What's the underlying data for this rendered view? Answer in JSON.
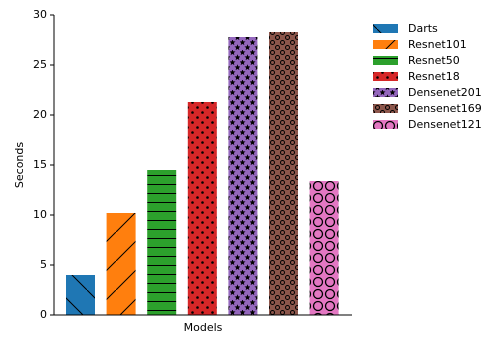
{
  "chart_data": {
    "type": "bar",
    "ylabel": "Seconds",
    "xlabel": "Models",
    "categories": [
      null
    ],
    "series": [
      {
        "name": "Darts",
        "color": "#1f77b4",
        "hatch": "\\",
        "values": [
          4.0
        ]
      },
      {
        "name": "Resnet101",
        "color": "#ff7f0e",
        "hatch": "/",
        "values": [
          10.2
        ]
      },
      {
        "name": "Resnet50",
        "color": "#2ca02c",
        "hatch": "-",
        "values": [
          14.5
        ]
      },
      {
        "name": "Resnet18",
        "color": "#d62728",
        "hatch": ".",
        "values": [
          21.3
        ]
      },
      {
        "name": "Densenet201",
        "color": "#9467bd",
        "hatch": "*",
        "values": [
          27.8
        ]
      },
      {
        "name": "Densenet169",
        "color": "#8c564b",
        "hatch": "o",
        "values": [
          28.3
        ]
      },
      {
        "name": "Densenet121",
        "color": "#e377c2",
        "hatch": "O",
        "values": [
          13.4
        ]
      }
    ],
    "ylim": [
      0,
      30
    ],
    "yticks": [
      0,
      5,
      10,
      15,
      20,
      25,
      30
    ],
    "grid": false,
    "legend": "outside right"
  }
}
